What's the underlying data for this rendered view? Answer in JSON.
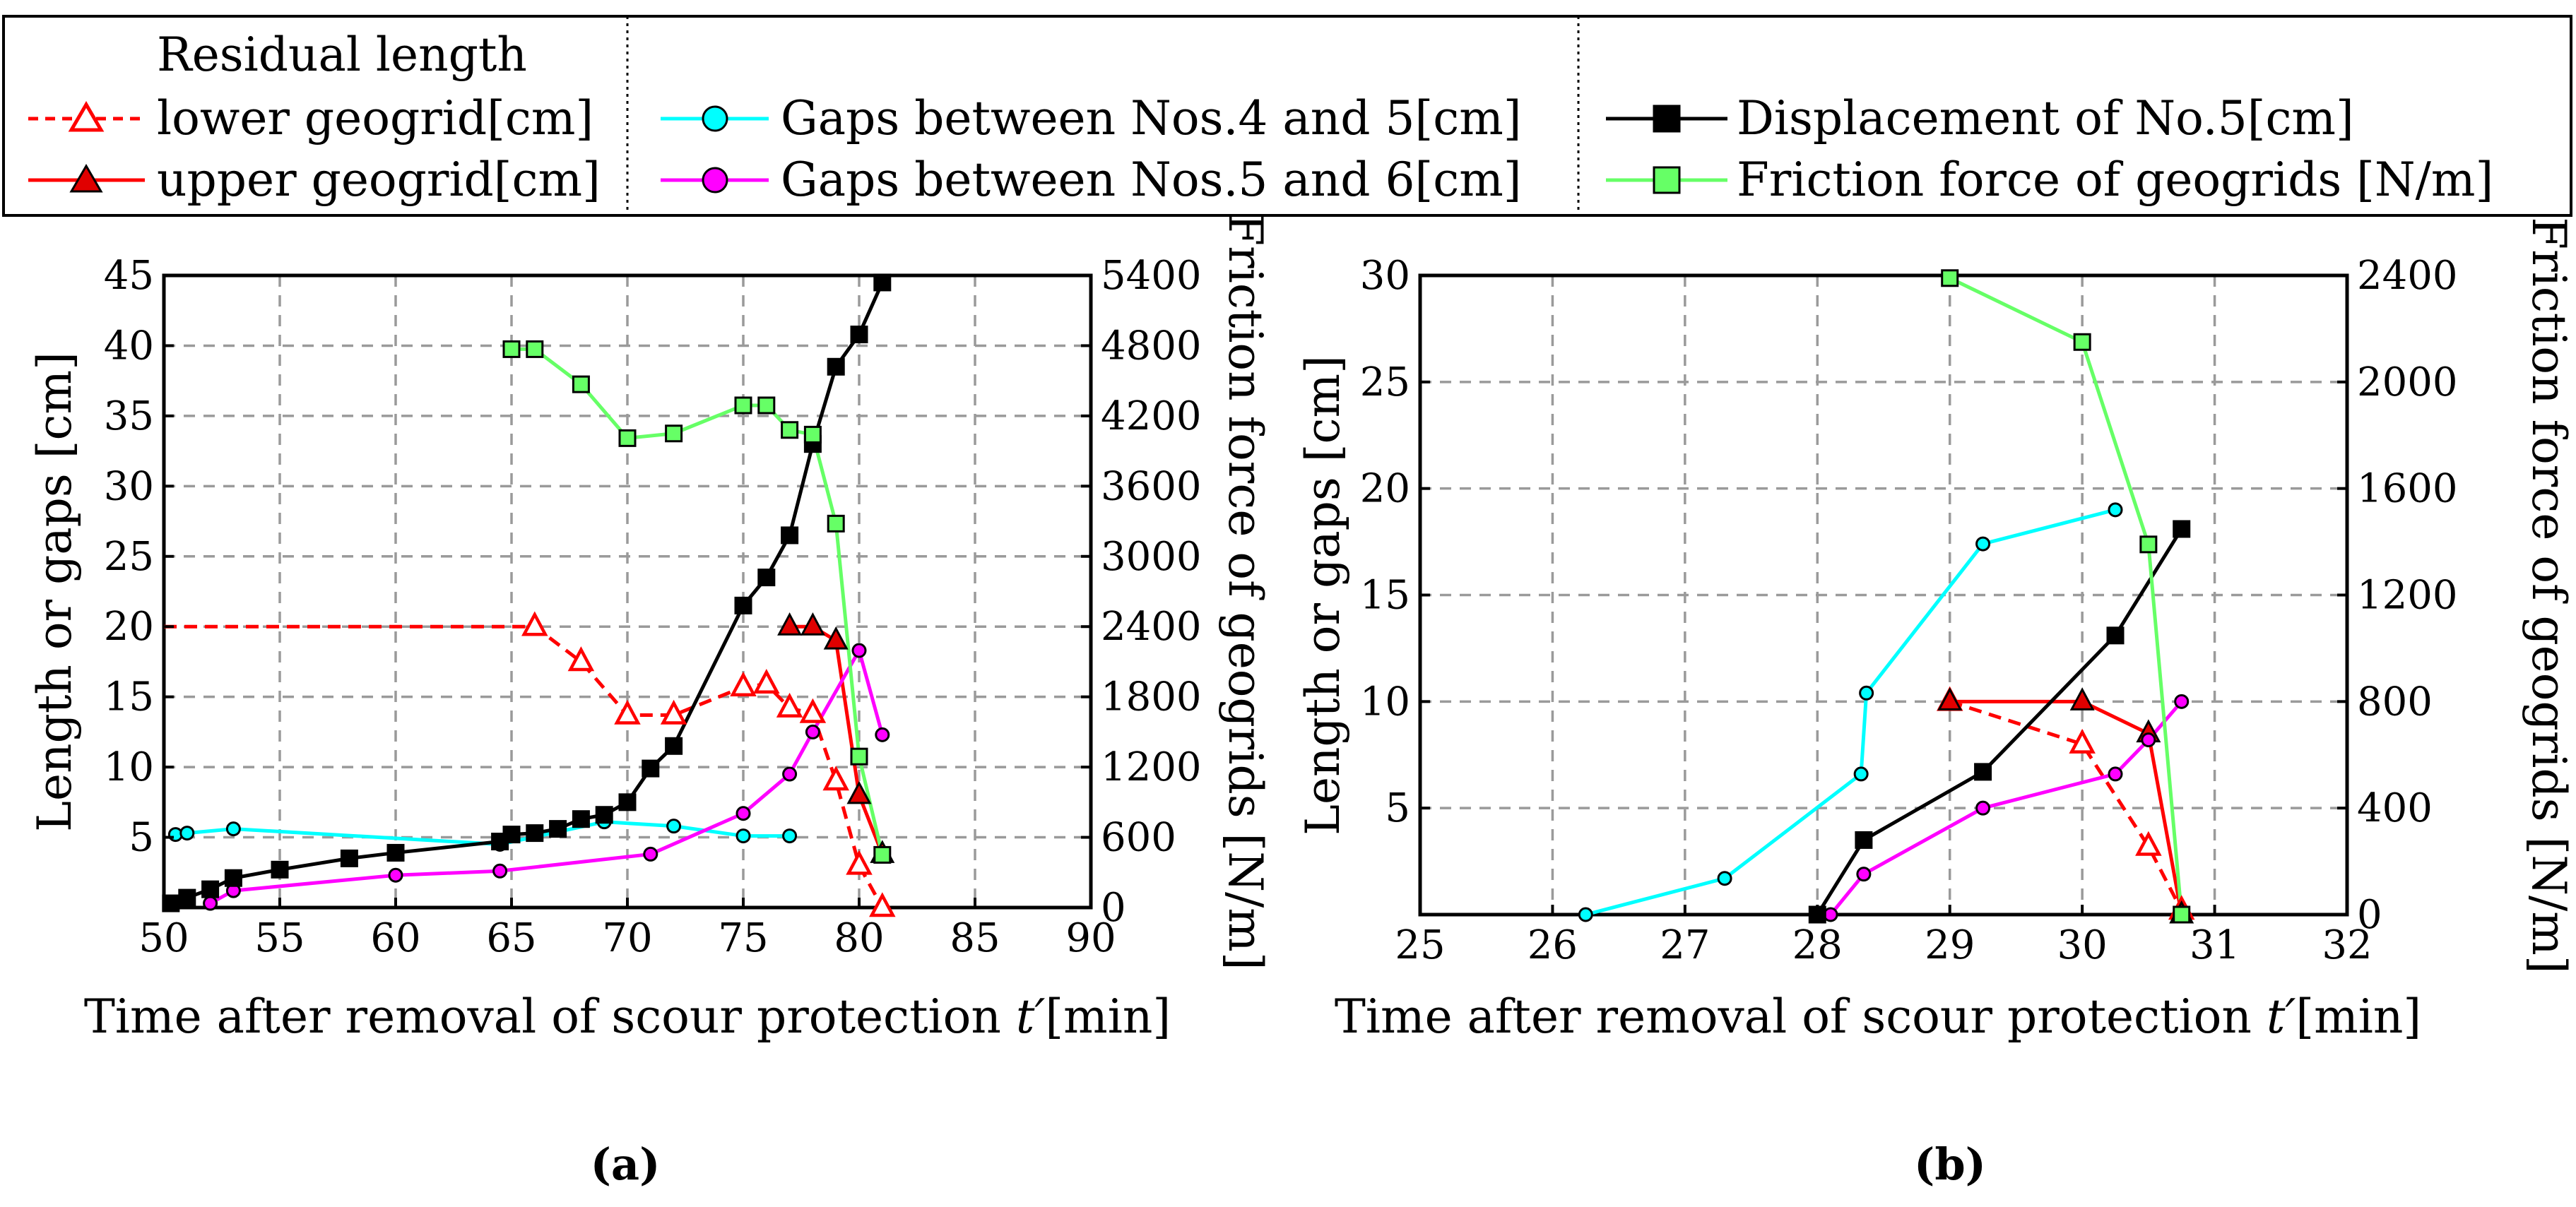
{
  "legend": {
    "title": "Residual length",
    "items": [
      {
        "key": "lower",
        "label": "lower geogrid[cm]"
      },
      {
        "key": "upper",
        "label": "upper geogrid[cm]"
      },
      {
        "key": "gap45",
        "label": "Gaps between Nos.4 and 5[cm]"
      },
      {
        "key": "gap56",
        "label": "Gaps between Nos.5 and 6[cm]"
      },
      {
        "key": "disp",
        "label": "Displacement of No.5[cm]"
      },
      {
        "key": "fric",
        "label": "Friction force of geogrids [N/m]"
      }
    ]
  },
  "styles": {
    "lower": {
      "color": "#ff0000",
      "dash": true,
      "marker": "triangle-open"
    },
    "upper": {
      "color": "#ff0000",
      "dash": false,
      "marker": "triangle-filled",
      "fill": "#e00000"
    },
    "gap45": {
      "color": "#00ffff",
      "dash": false,
      "marker": "circle",
      "fill": "#00ffff"
    },
    "gap56": {
      "color": "#ff00ff",
      "dash": false,
      "marker": "circle",
      "fill": "#ff00ff"
    },
    "disp": {
      "color": "#000000",
      "dash": false,
      "marker": "square",
      "fill": "#000000"
    },
    "fric": {
      "color": "#66ff66",
      "dash": false,
      "marker": "square",
      "fill": "#66ff66"
    }
  },
  "chart_data": [
    {
      "panel": "a",
      "panel_label": "(a)",
      "type": "line",
      "xlabel_main": "Time after removal of scour protection ",
      "xlabel_var": "t′",
      "xlabel_unit": "[min]",
      "ylabel": "Length or gaps [cm]",
      "y2label": "Friction force of geogrids [N/m]",
      "xlim": [
        50,
        90
      ],
      "ylim": [
        0,
        45
      ],
      "y2lim": [
        0,
        5400
      ],
      "xticks": [
        50,
        55,
        60,
        65,
        70,
        75,
        80,
        85,
        90
      ],
      "yticks": [
        5,
        10,
        15,
        20,
        25,
        30,
        35,
        40,
        45
      ],
      "y2ticks": [
        0,
        600,
        1200,
        1800,
        2400,
        3000,
        3600,
        4200,
        4800,
        5400
      ],
      "series": [
        {
          "name": "lower geogrid[cm]",
          "key": "lower",
          "axis": "left",
          "leading_x": 50,
          "x": [
            66,
            68,
            70,
            72,
            75,
            76,
            77,
            78,
            79,
            80,
            81
          ],
          "y": [
            20,
            17.5,
            13.7,
            13.7,
            15.7,
            15.9,
            14.2,
            13.8,
            9,
            3,
            0
          ]
        },
        {
          "name": "upper geogrid[cm]",
          "key": "upper",
          "axis": "left",
          "x": [
            77,
            78,
            79,
            80,
            81
          ],
          "y": [
            20,
            20,
            19,
            8,
            3.8
          ]
        },
        {
          "name": "Gaps between Nos.4 and 5[cm]",
          "key": "gap45",
          "axis": "left",
          "x": [
            50.5,
            51,
            53,
            64.5,
            69,
            72,
            75,
            77
          ],
          "y": [
            5.2,
            5.3,
            5.6,
            4.5,
            6.1,
            5.8,
            5.1,
            5.1
          ]
        },
        {
          "name": "Gaps between Nos.5 and 6[cm]",
          "key": "gap56",
          "axis": "left",
          "x": [
            52,
            53,
            60,
            64.5,
            71,
            75,
            77,
            78,
            80,
            81
          ],
          "y": [
            0.3,
            1.2,
            2.3,
            2.6,
            3.8,
            6.7,
            9.5,
            12.5,
            18.3,
            12.3
          ]
        },
        {
          "name": "Displacement of No.5[cm]",
          "key": "disp",
          "axis": "left",
          "x": [
            50.3,
            51,
            52,
            53,
            55,
            58,
            60,
            64.5,
            65,
            66,
            67,
            68,
            69,
            70,
            71,
            72,
            75,
            76,
            77,
            78,
            79,
            80,
            81
          ],
          "y": [
            0.3,
            0.7,
            1.3,
            2.1,
            2.7,
            3.5,
            3.9,
            4.7,
            5.2,
            5.3,
            5.6,
            6.3,
            6.6,
            7.5,
            9.9,
            11.5,
            21.5,
            23.5,
            26.5,
            33,
            38.5,
            40.8,
            44.5
          ]
        },
        {
          "name": "Friction force of geogrids [N/m]",
          "key": "fric",
          "axis": "right",
          "x": [
            65,
            66,
            68,
            70,
            72,
            75,
            76,
            77,
            78,
            79,
            80,
            81
          ],
          "y": [
            4770,
            4770,
            4470,
            4010,
            4050,
            4290,
            4290,
            4080,
            4040,
            3280,
            1290,
            450
          ]
        }
      ]
    },
    {
      "panel": "b",
      "panel_label": "(b)",
      "type": "line",
      "xlabel_main": "Time after removal of scour protection ",
      "xlabel_var": "t′",
      "xlabel_unit": "[min]",
      "ylabel": "Length or gaps [cm]",
      "y2label": "Friction force of geogrids [N/m]",
      "xlim": [
        25,
        32
      ],
      "ylim": [
        0,
        30
      ],
      "y2lim": [
        0,
        2400
      ],
      "xticks": [
        25,
        26,
        27,
        28,
        29,
        30,
        31,
        32
      ],
      "yticks": [
        5,
        10,
        15,
        20,
        25,
        30
      ],
      "y2ticks": [
        0,
        400,
        800,
        1200,
        1600,
        2000,
        2400
      ],
      "series": [
        {
          "name": "lower geogrid[cm]",
          "key": "lower",
          "axis": "left",
          "x": [
            29,
            30,
            30.5,
            30.75
          ],
          "y": [
            10,
            8,
            3.2,
            0.2
          ]
        },
        {
          "name": "upper geogrid[cm]",
          "key": "upper",
          "axis": "left",
          "x": [
            29,
            30,
            30.5,
            30.75
          ],
          "y": [
            10,
            10,
            8.5,
            0
          ]
        },
        {
          "name": "Gaps between Nos.4 and 5[cm]",
          "key": "gap45",
          "axis": "left",
          "x": [
            26.25,
            27.3,
            28.33,
            28.37,
            29.25,
            30.25
          ],
          "y": [
            0,
            1.7,
            6.6,
            10.4,
            17.4,
            19
          ]
        },
        {
          "name": "Gaps between Nos.5 and 6[cm]",
          "key": "gap56",
          "axis": "left",
          "x": [
            28.1,
            28.35,
            29.25,
            30.25,
            30.5,
            30.75
          ],
          "y": [
            0,
            1.9,
            5,
            6.6,
            8.2,
            10
          ]
        },
        {
          "name": "Displacement of No.5[cm]",
          "key": "disp",
          "axis": "left",
          "x": [
            28,
            28.35,
            29.25,
            30.25,
            30.75
          ],
          "y": [
            0,
            3.5,
            6.7,
            13.1,
            18.1
          ]
        },
        {
          "name": "Friction force of geogrids [N/m]",
          "key": "fric",
          "axis": "right",
          "x": [
            29,
            30,
            30.5,
            30.75
          ],
          "y": [
            2390,
            2150,
            1390,
            0
          ]
        }
      ]
    }
  ]
}
